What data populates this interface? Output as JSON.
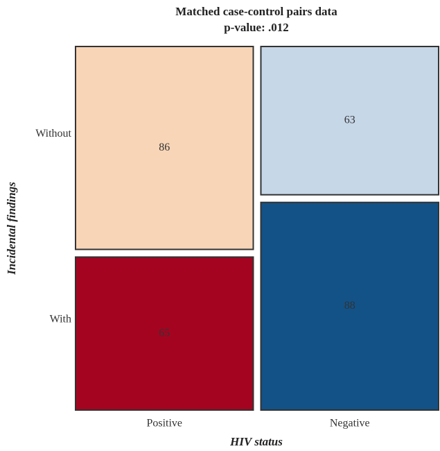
{
  "chart_data": {
    "type": "mosaic",
    "title": "Matched case-control pairs data",
    "subtitle": "p-value: .012",
    "x_label": "HIV status",
    "y_label": "Incidental findings",
    "categories": [
      "Positive",
      "Negative"
    ],
    "series": [
      {
        "name": "Without",
        "values": [
          86,
          63
        ],
        "colors": [
          "#f8d5b7",
          "#c6d7e8"
        ]
      },
      {
        "name": "With",
        "values": [
          65,
          88
        ],
        "colors": [
          "#a50421",
          "#135287"
        ]
      }
    ]
  }
}
